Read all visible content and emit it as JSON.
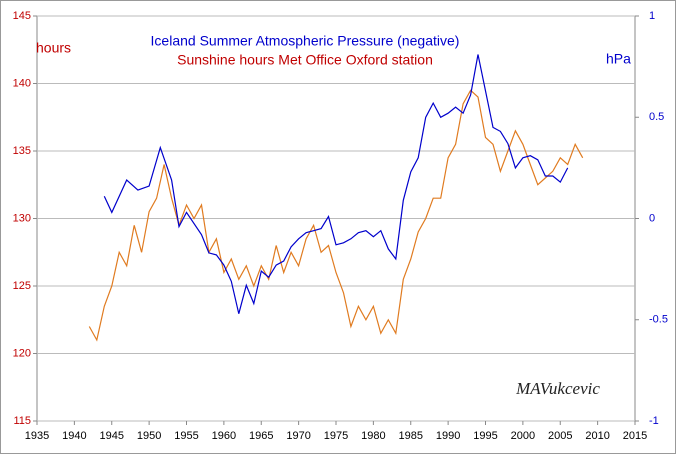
{
  "chart_data": {
    "type": "line",
    "title": "Iceland Summer Atmospheric Pressure (negative)",
    "subtitle": "Sunshine hours Met Office Oxford station",
    "y_label": "hours",
    "y2_label": "hPa",
    "annotation": "MAVukcevic",
    "xlim": [
      1935,
      2015
    ],
    "xticks": [
      1935,
      1940,
      1945,
      1950,
      1955,
      1960,
      1965,
      1970,
      1975,
      1980,
      1985,
      1990,
      1995,
      2000,
      2005,
      2010,
      2015
    ],
    "ylim": [
      115,
      145
    ],
    "yticks": [
      115,
      120,
      125,
      130,
      135,
      140,
      145
    ],
    "y2lim": [
      -1,
      1
    ],
    "y2ticks": [
      -1,
      -0.5,
      0,
      0.5,
      1
    ],
    "grid": true,
    "series": [
      {
        "name": "Sunshine hours Met Office Oxford station",
        "color": "#e07b20",
        "axis": "y",
        "x": [
          1942,
          1943,
          1944,
          1945,
          1946,
          1947,
          1948,
          1949,
          1950,
          1951,
          1952,
          1953,
          1954,
          1955,
          1956,
          1957,
          1958,
          1959,
          1960,
          1961,
          1962,
          1963,
          1964,
          1965,
          1966,
          1967,
          1968,
          1969,
          1970,
          1971,
          1972,
          1973,
          1974,
          1975,
          1976,
          1977,
          1978,
          1979,
          1980,
          1981,
          1982,
          1983,
          1984,
          1985,
          1986,
          1987,
          1988,
          1989,
          1990,
          1991,
          1992,
          1993,
          1994,
          1995,
          1996,
          1997,
          1998,
          1999,
          2000,
          2001,
          2002,
          2003,
          2004,
          2005,
          2006,
          2007,
          2008
        ],
        "values": [
          122,
          121,
          123.5,
          125,
          127.5,
          126.5,
          129.5,
          127.5,
          130.5,
          131.5,
          134,
          131.5,
          129.5,
          131,
          130,
          131,
          127.5,
          128.5,
          126,
          127,
          125.5,
          126.5,
          125,
          126.5,
          125.5,
          128,
          126,
          127.5,
          126.5,
          128.5,
          129.5,
          127.5,
          128,
          126,
          124.5,
          122,
          123.5,
          122.5,
          123.5,
          121.5,
          122.5,
          121.5,
          125.5,
          127,
          129,
          130,
          131.5,
          131.5,
          134.5,
          135.5,
          138.5,
          139.5,
          139,
          136,
          135.5,
          133.5,
          135,
          136.5,
          135.5,
          134,
          132.5,
          133,
          133.5,
          134.5,
          134,
          135.5,
          134.5
        ]
      },
      {
        "name": "Iceland Summer Atmospheric Pressure (negative)",
        "color": "#0000cc",
        "axis": "y2",
        "x": [
          1944,
          1945,
          1947,
          1948.5,
          1950,
          1951.5,
          1953,
          1954,
          1955,
          1957,
          1958,
          1959,
          1960,
          1961,
          1962,
          1963,
          1964,
          1965,
          1966,
          1967,
          1968,
          1969,
          1970,
          1971,
          1972,
          1973,
          1974,
          1975,
          1976,
          1977,
          1978,
          1979,
          1980,
          1981,
          1982,
          1983,
          1984,
          1985,
          1986,
          1987,
          1988,
          1989,
          1990,
          1991,
          1992,
          1993,
          1994,
          1995,
          1996,
          1997,
          1998,
          1999,
          2000,
          2001,
          2002,
          2003,
          2004,
          2005,
          2006
        ],
        "values": [
          0.11,
          0.03,
          0.19,
          0.14,
          0.16,
          0.35,
          0.19,
          -0.04,
          0.03,
          -0.08,
          -0.17,
          -0.18,
          -0.23,
          -0.31,
          -0.47,
          -0.33,
          -0.42,
          -0.26,
          -0.29,
          -0.23,
          -0.21,
          -0.14,
          -0.1,
          -0.07,
          -0.06,
          -0.05,
          0.01,
          -0.13,
          -0.12,
          -0.1,
          -0.07,
          -0.06,
          -0.09,
          -0.06,
          -0.15,
          -0.2,
          0.09,
          0.23,
          0.3,
          0.5,
          0.57,
          0.5,
          0.52,
          0.55,
          0.52,
          0.61,
          0.81,
          0.63,
          0.45,
          0.43,
          0.37,
          0.25,
          0.3,
          0.31,
          0.29,
          0.21,
          0.21,
          0.18,
          0.25
        ]
      }
    ]
  }
}
